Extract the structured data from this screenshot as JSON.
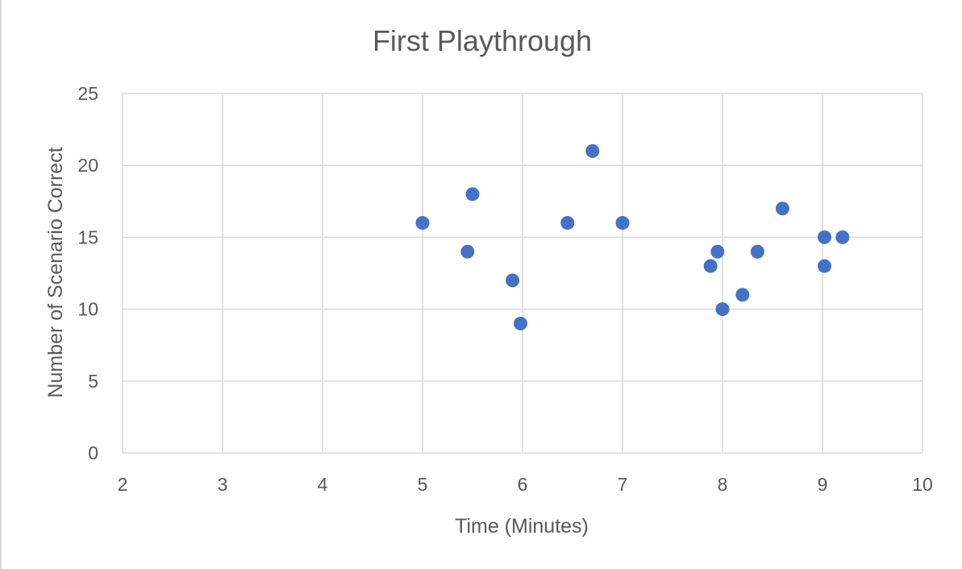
{
  "chart_data": {
    "type": "scatter",
    "title": "First Playthrough",
    "xlabel": "Time (Minutes)",
    "ylabel": "Number of Scenario Correct",
    "xlim": [
      2,
      10
    ],
    "ylim": [
      0,
      25
    ],
    "xticks": [
      "2",
      "3",
      "4",
      "5",
      "6",
      "7",
      "8",
      "9",
      "10"
    ],
    "yticks": [
      "0",
      "5",
      "10",
      "15",
      "20",
      "25"
    ],
    "grid": true,
    "legend": "none",
    "marker_color": "#4472c4",
    "series": [
      {
        "points": [
          {
            "x": 5.0,
            "y": 16
          },
          {
            "x": 5.45,
            "y": 14
          },
          {
            "x": 5.5,
            "y": 18
          },
          {
            "x": 5.9,
            "y": 12
          },
          {
            "x": 5.98,
            "y": 9
          },
          {
            "x": 6.45,
            "y": 16
          },
          {
            "x": 6.7,
            "y": 21
          },
          {
            "x": 7.0,
            "y": 16
          },
          {
            "x": 7.88,
            "y": 13
          },
          {
            "x": 7.95,
            "y": 14
          },
          {
            "x": 8.0,
            "y": 10
          },
          {
            "x": 8.2,
            "y": 11
          },
          {
            "x": 8.35,
            "y": 14
          },
          {
            "x": 8.6,
            "y": 17
          },
          {
            "x": 9.02,
            "y": 15
          },
          {
            "x": 9.02,
            "y": 13
          },
          {
            "x": 9.2,
            "y": 15
          }
        ]
      }
    ]
  }
}
